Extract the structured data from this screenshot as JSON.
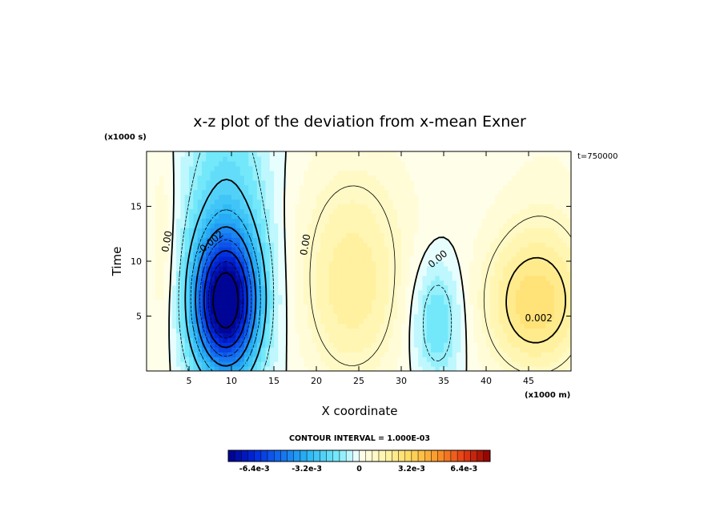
{
  "chart_data": {
    "type": "heatmap",
    "title": "x-z plot of the deviation from x-mean Exner",
    "xlabel": "X coordinate",
    "ylabel": "Time",
    "x_units": "(x1000 m)",
    "y_units": "(x1000 s)",
    "time_label": "t=750000",
    "xlim": [
      0,
      50
    ],
    "ylim": [
      0,
      20
    ],
    "x_ticks": [
      5,
      10,
      15,
      20,
      25,
      30,
      35,
      40,
      45
    ],
    "y_ticks": [
      5,
      10,
      15
    ],
    "contour_interval_text": "CONTOUR INTERVAL = 1.000E-03",
    "contour_labels": [
      {
        "text": "0.00",
        "x": 2.4,
        "y": 11.8
      },
      {
        "text": "-0.002",
        "x": 7.5,
        "y": 11.7
      },
      {
        "text": "0.00",
        "x": 18.7,
        "y": 11.5
      },
      {
        "text": "0.00",
        "x": 34.3,
        "y": 10.2
      },
      {
        "text": "0.002",
        "x": 46.2,
        "y": 4.8
      }
    ],
    "features": [
      {
        "kind": "min",
        "x": 9.3,
        "y": 6.1,
        "sx": 2.6,
        "sy": 4.2,
        "value": -0.0075
      },
      {
        "kind": "min",
        "x": 9.5,
        "y": 12.0,
        "sx": 3.5,
        "sy": 9.0,
        "value": -0.0022
      },
      {
        "kind": "min",
        "x": 2.0,
        "y": 11.0,
        "sx": 1.3,
        "sy": 8.0,
        "value": 0.0008
      },
      {
        "kind": "max",
        "x": 24.2,
        "y": 6.8,
        "sx": 4.3,
        "sy": 6.0,
        "value": 0.0017
      },
      {
        "kind": "max",
        "x": 24.5,
        "y": 15.5,
        "sx": 6.0,
        "sy": 6.0,
        "value": 0.0006
      },
      {
        "kind": "min",
        "x": 34.2,
        "y": 4.6,
        "sx": 2.0,
        "sy": 3.8,
        "value": -0.0018
      },
      {
        "kind": "max",
        "x": 45.8,
        "y": 6.0,
        "sx": 4.3,
        "sy": 4.5,
        "value": 0.0026
      },
      {
        "kind": "max",
        "x": 47.0,
        "y": 15.0,
        "sx": 5.0,
        "sy": 6.0,
        "value": 0.0005
      }
    ],
    "colorbar": {
      "min": -0.008,
      "max": 0.008,
      "step": 0.0004,
      "tick_labels": [
        "-6.4e-3",
        "-3.2e-3",
        "0",
        "3.2e-3",
        "6.4e-3"
      ],
      "tick_values": [
        -0.0064,
        -0.0032,
        0,
        0.0032,
        0.0064
      ]
    }
  }
}
